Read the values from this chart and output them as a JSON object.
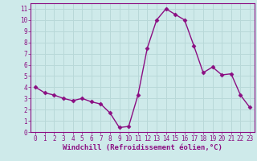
{
  "x": [
    0,
    1,
    2,
    3,
    4,
    5,
    6,
    7,
    8,
    9,
    10,
    11,
    12,
    13,
    14,
    15,
    16,
    17,
    18,
    19,
    20,
    21,
    22,
    23
  ],
  "y": [
    4.0,
    3.5,
    3.3,
    3.0,
    2.8,
    3.0,
    2.7,
    2.5,
    1.7,
    0.4,
    0.5,
    3.3,
    7.5,
    10.0,
    11.0,
    10.5,
    10.0,
    7.7,
    5.3,
    5.8,
    5.1,
    5.2,
    3.3,
    2.2
  ],
  "line_color": "#8b0e82",
  "marker": "D",
  "marker_size": 2.5,
  "bg_color": "#ceeaea",
  "grid_color": "#b8d8d8",
  "xlabel": "Windchill (Refroidissement éolien,°C)",
  "xlim": [
    -0.5,
    23.5
  ],
  "ylim": [
    0,
    11.5
  ],
  "yticks": [
    0,
    1,
    2,
    3,
    4,
    5,
    6,
    7,
    8,
    9,
    10,
    11
  ],
  "xticks": [
    0,
    1,
    2,
    3,
    4,
    5,
    6,
    7,
    8,
    9,
    10,
    11,
    12,
    13,
    14,
    15,
    16,
    17,
    18,
    19,
    20,
    21,
    22,
    23
  ],
  "xlabel_fontsize": 6.5,
  "tick_fontsize": 5.5,
  "line_width": 1.0
}
